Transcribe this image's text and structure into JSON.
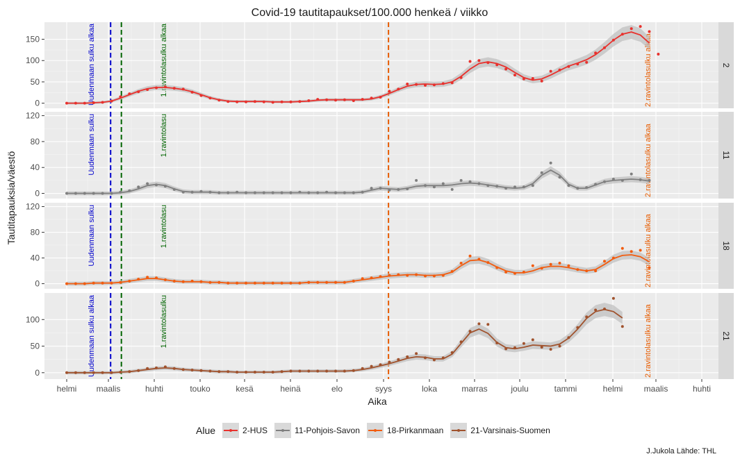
{
  "chart_data": {
    "type": "line",
    "title": "Covid-19 tautitapaukset/100.000 henkeä / viikko",
    "xlabel": "Aika",
    "ylabel": "Tautitapauksia/väestö",
    "x_ticks": [
      "helmi",
      "maalis",
      "huhti",
      "touko",
      "kesä",
      "heinä",
      "elo",
      "syys",
      "loka",
      "marras",
      "joulu",
      "tammi",
      "helmi",
      "maalis",
      "huhti"
    ],
    "grid": true,
    "legend_position": "bottom",
    "legend_title": "Alue",
    "caption": "J.Jukola  Lähde: THL",
    "vlines": [
      {
        "label": "Uudenmaan sulku alkaa",
        "week": 4.9,
        "color": "#0000cc"
      },
      {
        "label": "1.ravintolasulku alkaa",
        "week": 6.1,
        "color": "#006400"
      },
      {
        "label": "2.ravintolasulku alkaa",
        "week": 35.9,
        "color": "#e85c00"
      }
    ],
    "panels": [
      {
        "strip": "2",
        "name": "2-HUS",
        "color": "#e8312d",
        "ylim": [
          -12,
          190
        ],
        "yticks": [
          0,
          50,
          100,
          150
        ],
        "labels": [
          "Uudenmaan sulku alkaa",
          "1.ravintolasulku alkaa",
          "2.ravintolasulku alkaa"
        ],
        "smooth": [
          0,
          0,
          0,
          1,
          2,
          5,
          12,
          20,
          28,
          34,
          37,
          37,
          35,
          32,
          27,
          20,
          13,
          8,
          5,
          4,
          4,
          4,
          4,
          3,
          3,
          3,
          4,
          5,
          7,
          8,
          8,
          8,
          8,
          8,
          10,
          15,
          23,
          32,
          40,
          44,
          45,
          44,
          45,
          50,
          63,
          80,
          93,
          97,
          93,
          85,
          72,
          60,
          54,
          57,
          66,
          77,
          87,
          94,
          102,
          114,
          130,
          148,
          162,
          167,
          160,
          141
        ],
        "points": [
          0,
          0,
          0,
          1,
          2,
          5,
          15,
          22,
          27,
          32,
          36,
          38,
          35,
          33,
          26,
          18,
          12,
          7,
          4,
          3,
          3,
          4,
          3,
          2,
          3,
          3,
          4,
          6,
          9,
          8,
          7,
          8,
          6,
          9,
          12,
          14,
          28,
          33,
          45,
          44,
          42,
          43,
          46,
          48,
          60,
          98,
          100,
          95,
          90,
          80,
          66,
          57,
          58,
          52,
          75,
          78,
          86,
          92,
          96,
          118,
          130,
          148,
          162,
          175,
          180,
          168,
          115
        ]
      },
      {
        "strip": "11",
        "name": "11-Pohjois-Savon",
        "color": "#7f7f7f",
        "ylim": [
          -8,
          126
        ],
        "yticks": [
          0,
          40,
          80,
          120
        ],
        "labels": [
          "Uudenmaan sulku",
          "1.ravintolasu",
          "2.ravintolasulku alkaa"
        ],
        "smooth": [
          0,
          0,
          0,
          0,
          0,
          0,
          1,
          3,
          7,
          12,
          14,
          12,
          7,
          3,
          2,
          2,
          2,
          1,
          1,
          1,
          1,
          1,
          1,
          1,
          1,
          1,
          1,
          1,
          1,
          1,
          1,
          1,
          1,
          2,
          5,
          8,
          7,
          6,
          8,
          11,
          12,
          12,
          12,
          13,
          15,
          16,
          15,
          13,
          11,
          9,
          8,
          9,
          15,
          28,
          36,
          28,
          14,
          8,
          8,
          13,
          18,
          20,
          21,
          22,
          21,
          19
        ],
        "points": [
          0,
          0,
          0,
          0,
          0,
          0,
          2,
          4,
          10,
          15,
          13,
          11,
          6,
          2,
          2,
          3,
          2,
          1,
          1,
          2,
          1,
          1,
          1,
          1,
          1,
          1,
          2,
          1,
          1,
          2,
          1,
          1,
          1,
          2,
          8,
          8,
          5,
          6,
          7,
          20,
          12,
          10,
          15,
          6,
          20,
          18,
          15,
          12,
          11,
          8,
          10,
          10,
          12,
          32,
          47,
          25,
          12,
          8,
          9,
          14,
          18,
          22,
          20,
          30,
          21,
          20
        ]
      },
      {
        "strip": "18",
        "name": "18-Pirkanmaan",
        "color": "#f25c0f",
        "ylim": [
          -8,
          126
        ],
        "yticks": [
          0,
          40,
          80,
          120
        ],
        "labels": [
          "Uudenmaan sulku",
          "1.ravintolasu",
          "2.ravintolasulku alkaa"
        ],
        "smooth": [
          0,
          0,
          0,
          1,
          1,
          1,
          2,
          4,
          6,
          8,
          8,
          6,
          4,
          3,
          3,
          3,
          2,
          2,
          1,
          1,
          1,
          1,
          1,
          1,
          1,
          1,
          1,
          2,
          2,
          2,
          2,
          2,
          4,
          6,
          8,
          10,
          12,
          13,
          14,
          14,
          13,
          13,
          14,
          18,
          28,
          36,
          37,
          33,
          26,
          20,
          17,
          17,
          20,
          25,
          27,
          27,
          25,
          22,
          20,
          22,
          30,
          39,
          44,
          45,
          42,
          34
        ],
        "points": [
          0,
          0,
          0,
          1,
          1,
          1,
          2,
          4,
          7,
          10,
          9,
          6,
          4,
          3,
          4,
          3,
          2,
          2,
          1,
          1,
          1,
          1,
          1,
          1,
          1,
          1,
          1,
          2,
          2,
          2,
          2,
          2,
          4,
          8,
          9,
          11,
          13,
          14,
          13,
          14,
          12,
          12,
          13,
          19,
          32,
          43,
          38,
          33,
          25,
          18,
          16,
          18,
          28,
          24,
          30,
          32,
          28,
          22,
          20,
          20,
          35,
          40,
          55,
          50,
          52,
          25
        ]
      },
      {
        "strip": "21",
        "name": "21-Varsinais-Suomen",
        "color": "#a0522d",
        "ylim": [
          -12,
          150
        ],
        "yticks": [
          0,
          50,
          100
        ],
        "labels": [
          "Uudenmaan sulku alkaa",
          "1.ravintolasulku",
          "2.ravintolasulku alkaa"
        ],
        "smooth": [
          0,
          0,
          0,
          0,
          0,
          0,
          1,
          2,
          4,
          6,
          8,
          9,
          8,
          6,
          5,
          4,
          3,
          2,
          2,
          1,
          1,
          1,
          1,
          1,
          2,
          3,
          3,
          3,
          3,
          3,
          3,
          3,
          4,
          6,
          9,
          13,
          17,
          22,
          27,
          30,
          29,
          26,
          26,
          35,
          55,
          75,
          82,
          74,
          57,
          47,
          45,
          48,
          52,
          51,
          50,
          54,
          65,
          82,
          102,
          115,
          119,
          115,
          103
        ],
        "points": [
          0,
          0,
          0,
          0,
          0,
          0,
          1,
          2,
          4,
          8,
          9,
          11,
          8,
          6,
          5,
          4,
          3,
          2,
          2,
          1,
          1,
          1,
          1,
          1,
          2,
          3,
          3,
          3,
          3,
          3,
          3,
          3,
          4,
          8,
          12,
          15,
          20,
          25,
          30,
          36,
          28,
          24,
          28,
          38,
          58,
          78,
          92,
          91,
          56,
          45,
          47,
          55,
          62,
          48,
          44,
          50,
          66,
          85,
          105,
          118,
          120,
          140,
          87
        ]
      }
    ]
  }
}
